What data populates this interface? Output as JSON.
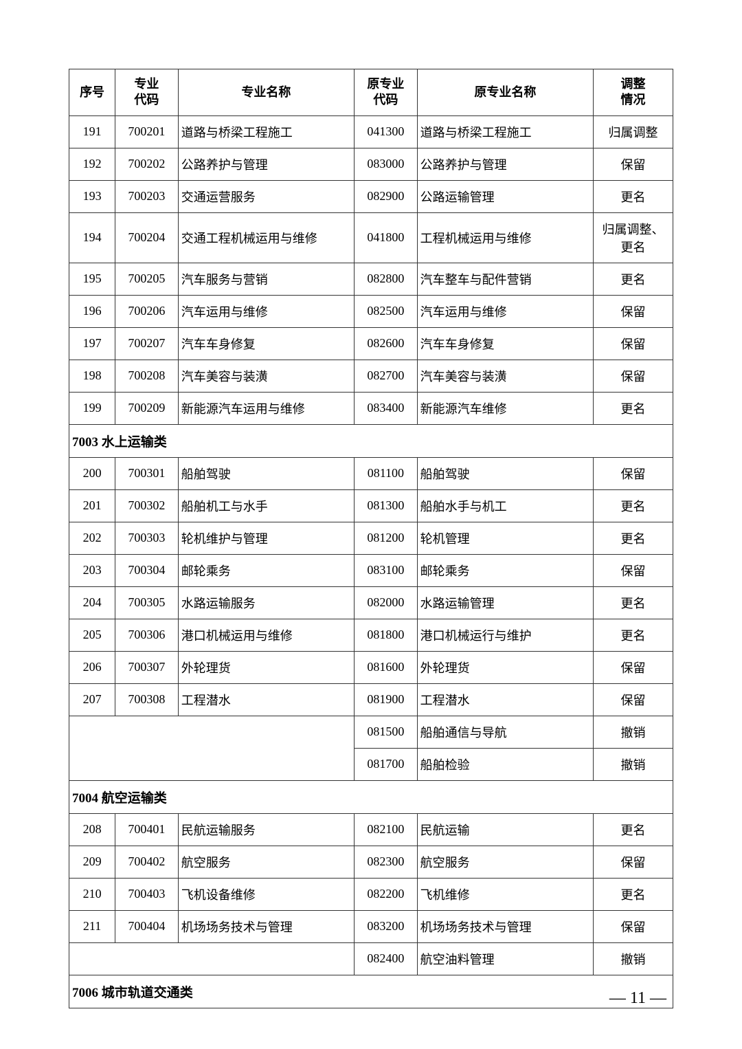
{
  "headers": {
    "seq": "序号",
    "code": "专业\n代码",
    "name": "专业名称",
    "ocode": "原专业\n代码",
    "oname": "原专业名称",
    "adj": "调整\n情况"
  },
  "sections": {
    "s7003": "7003 水上运输类",
    "s7004": "7004 航空运输类",
    "s7006": "7006 城市轨道交通类"
  },
  "rows": {
    "r0": {
      "seq": "191",
      "code": "700201",
      "name": "道路与桥梁工程施工",
      "ocode": "041300",
      "oname": "道路与桥梁工程施工",
      "adj": "归属调整"
    },
    "r1": {
      "seq": "192",
      "code": "700202",
      "name": "公路养护与管理",
      "ocode": "083000",
      "oname": "公路养护与管理",
      "adj": "保留"
    },
    "r2": {
      "seq": "193",
      "code": "700203",
      "name": "交通运营服务",
      "ocode": "082900",
      "oname": "公路运输管理",
      "adj": "更名"
    },
    "r3": {
      "seq": "194",
      "code": "700204",
      "name": "交通工程机械运用与维修",
      "ocode": "041800",
      "oname": "工程机械运用与维修",
      "adj": "归属调整、更名"
    },
    "r4": {
      "seq": "195",
      "code": "700205",
      "name": "汽车服务与营销",
      "ocode": "082800",
      "oname": "汽车整车与配件营销",
      "adj": "更名"
    },
    "r5": {
      "seq": "196",
      "code": "700206",
      "name": "汽车运用与维修",
      "ocode": "082500",
      "oname": "汽车运用与维修",
      "adj": "保留"
    },
    "r6": {
      "seq": "197",
      "code": "700207",
      "name": "汽车车身修复",
      "ocode": "082600",
      "oname": "汽车车身修复",
      "adj": "保留"
    },
    "r7": {
      "seq": "198",
      "code": "700208",
      "name": "汽车美容与装潢",
      "ocode": "082700",
      "oname": "汽车美容与装潢",
      "adj": "保留"
    },
    "r8": {
      "seq": "199",
      "code": "700209",
      "name": "新能源汽车运用与维修",
      "ocode": "083400",
      "oname": "新能源汽车维修",
      "adj": "更名"
    },
    "r9": {
      "seq": "200",
      "code": "700301",
      "name": "船舶驾驶",
      "ocode": "081100",
      "oname": "船舶驾驶",
      "adj": "保留"
    },
    "r10": {
      "seq": "201",
      "code": "700302",
      "name": "船舶机工与水手",
      "ocode": "081300",
      "oname": "船舶水手与机工",
      "adj": "更名"
    },
    "r11": {
      "seq": "202",
      "code": "700303",
      "name": "轮机维护与管理",
      "ocode": "081200",
      "oname": "轮机管理",
      "adj": "更名"
    },
    "r12": {
      "seq": "203",
      "code": "700304",
      "name": "邮轮乘务",
      "ocode": "083100",
      "oname": "邮轮乘务",
      "adj": "保留"
    },
    "r13": {
      "seq": "204",
      "code": "700305",
      "name": "水路运输服务",
      "ocode": "082000",
      "oname": "水路运输管理",
      "adj": "更名"
    },
    "r14": {
      "seq": "205",
      "code": "700306",
      "name": "港口机械运用与维修",
      "ocode": "081800",
      "oname": "港口机械运行与维护",
      "adj": "更名"
    },
    "r15": {
      "seq": "206",
      "code": "700307",
      "name": "外轮理货",
      "ocode": "081600",
      "oname": "外轮理货",
      "adj": "保留"
    },
    "r16": {
      "seq": "207",
      "code": "700308",
      "name": "工程潜水",
      "ocode": "081900",
      "oname": "工程潜水",
      "adj": "保留"
    },
    "r17": {
      "ocode": "081500",
      "oname": "船舶通信与导航",
      "adj": "撤销"
    },
    "r18": {
      "ocode": "081700",
      "oname": "船舶检验",
      "adj": "撤销"
    },
    "r19": {
      "seq": "208",
      "code": "700401",
      "name": "民航运输服务",
      "ocode": "082100",
      "oname": "民航运输",
      "adj": "更名"
    },
    "r20": {
      "seq": "209",
      "code": "700402",
      "name": "航空服务",
      "ocode": "082300",
      "oname": "航空服务",
      "adj": "保留"
    },
    "r21": {
      "seq": "210",
      "code": "700403",
      "name": "飞机设备维修",
      "ocode": "082200",
      "oname": "飞机维修",
      "adj": "更名"
    },
    "r22": {
      "seq": "211",
      "code": "700404",
      "name": "机场场务技术与管理",
      "ocode": "083200",
      "oname": "机场场务技术与管理",
      "adj": "保留"
    },
    "r23": {
      "ocode": "082400",
      "oname": "航空油料管理",
      "adj": "撤销"
    }
  },
  "pageNumber": "— 11 —"
}
